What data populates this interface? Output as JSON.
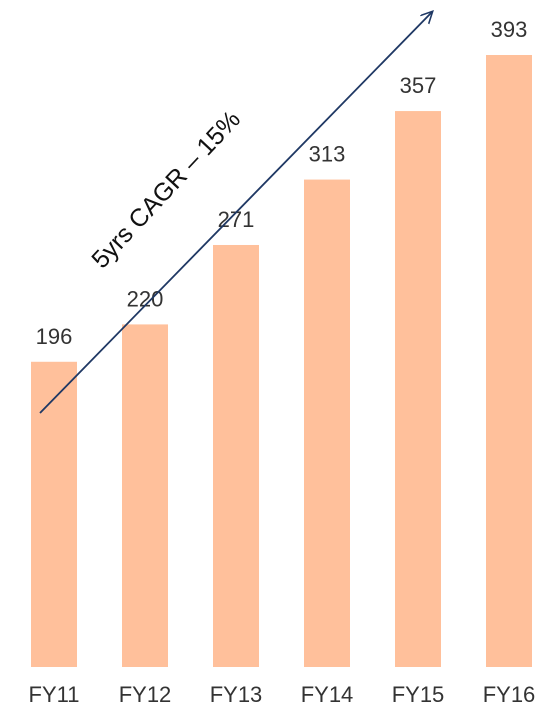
{
  "chart_data": {
    "type": "bar",
    "categories": [
      "FY11",
      "FY12",
      "FY13",
      "FY14",
      "FY15",
      "FY16"
    ],
    "values": [
      196,
      220,
      271,
      313,
      357,
      393
    ],
    "title": "",
    "xlabel": "",
    "ylabel": "",
    "ylim": [
      0,
      393
    ],
    "grid": false,
    "legend": "none",
    "data_labels": true,
    "annotation": "5yrs CAGR – 15%",
    "bar_color": "#FFC09B",
    "arrow_color": "#1F3864",
    "label_color": "#333333"
  }
}
